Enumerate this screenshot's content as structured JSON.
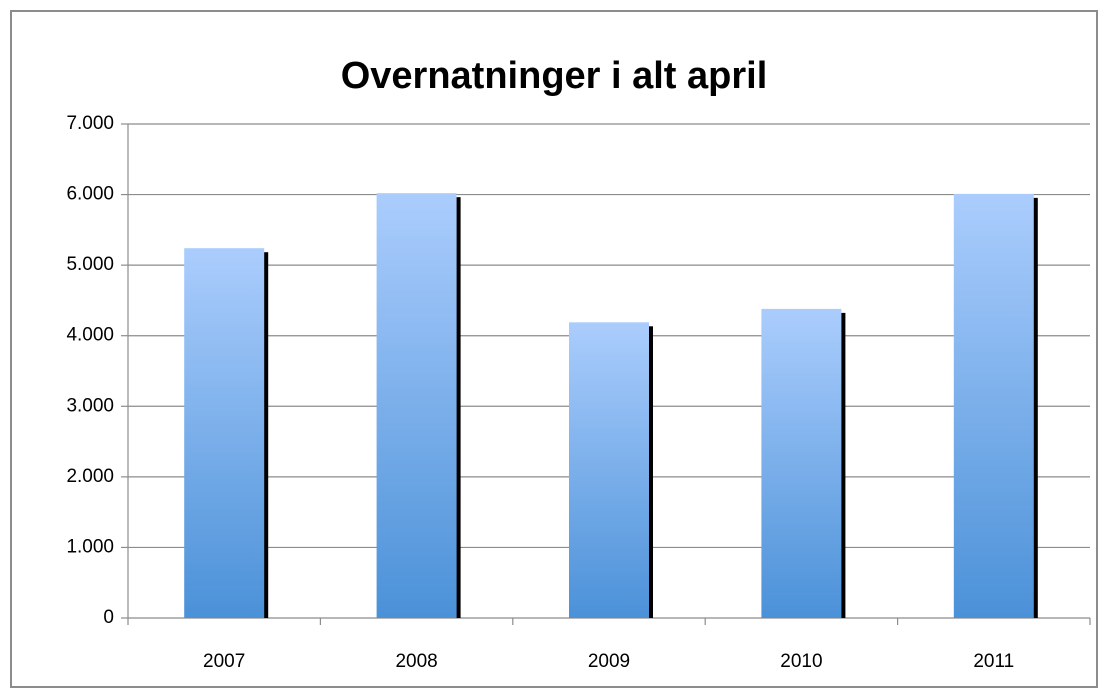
{
  "chart_data": {
    "type": "bar",
    "title": "Overnatninger i alt april",
    "categories": [
      "2007",
      "2008",
      "2009",
      "2010",
      "2011"
    ],
    "values": [
      5240,
      6020,
      4190,
      4380,
      6010
    ],
    "color": "#5b9be0",
    "ylim": [
      0,
      7000
    ],
    "yticks": [
      0,
      {
        "value": 1000,
        "label": "1.000"
      },
      {
        "value": 2000,
        "label": "2.000"
      },
      {
        "value": 3000,
        "label": "3.000"
      },
      {
        "value": 4000,
        "label": "4.000"
      },
      {
        "value": 5000,
        "label": "5.000"
      },
      {
        "value": 6000,
        "label": "6.000"
      },
      {
        "value": 7000,
        "label": "7.000"
      }
    ],
    "grid": true
  }
}
